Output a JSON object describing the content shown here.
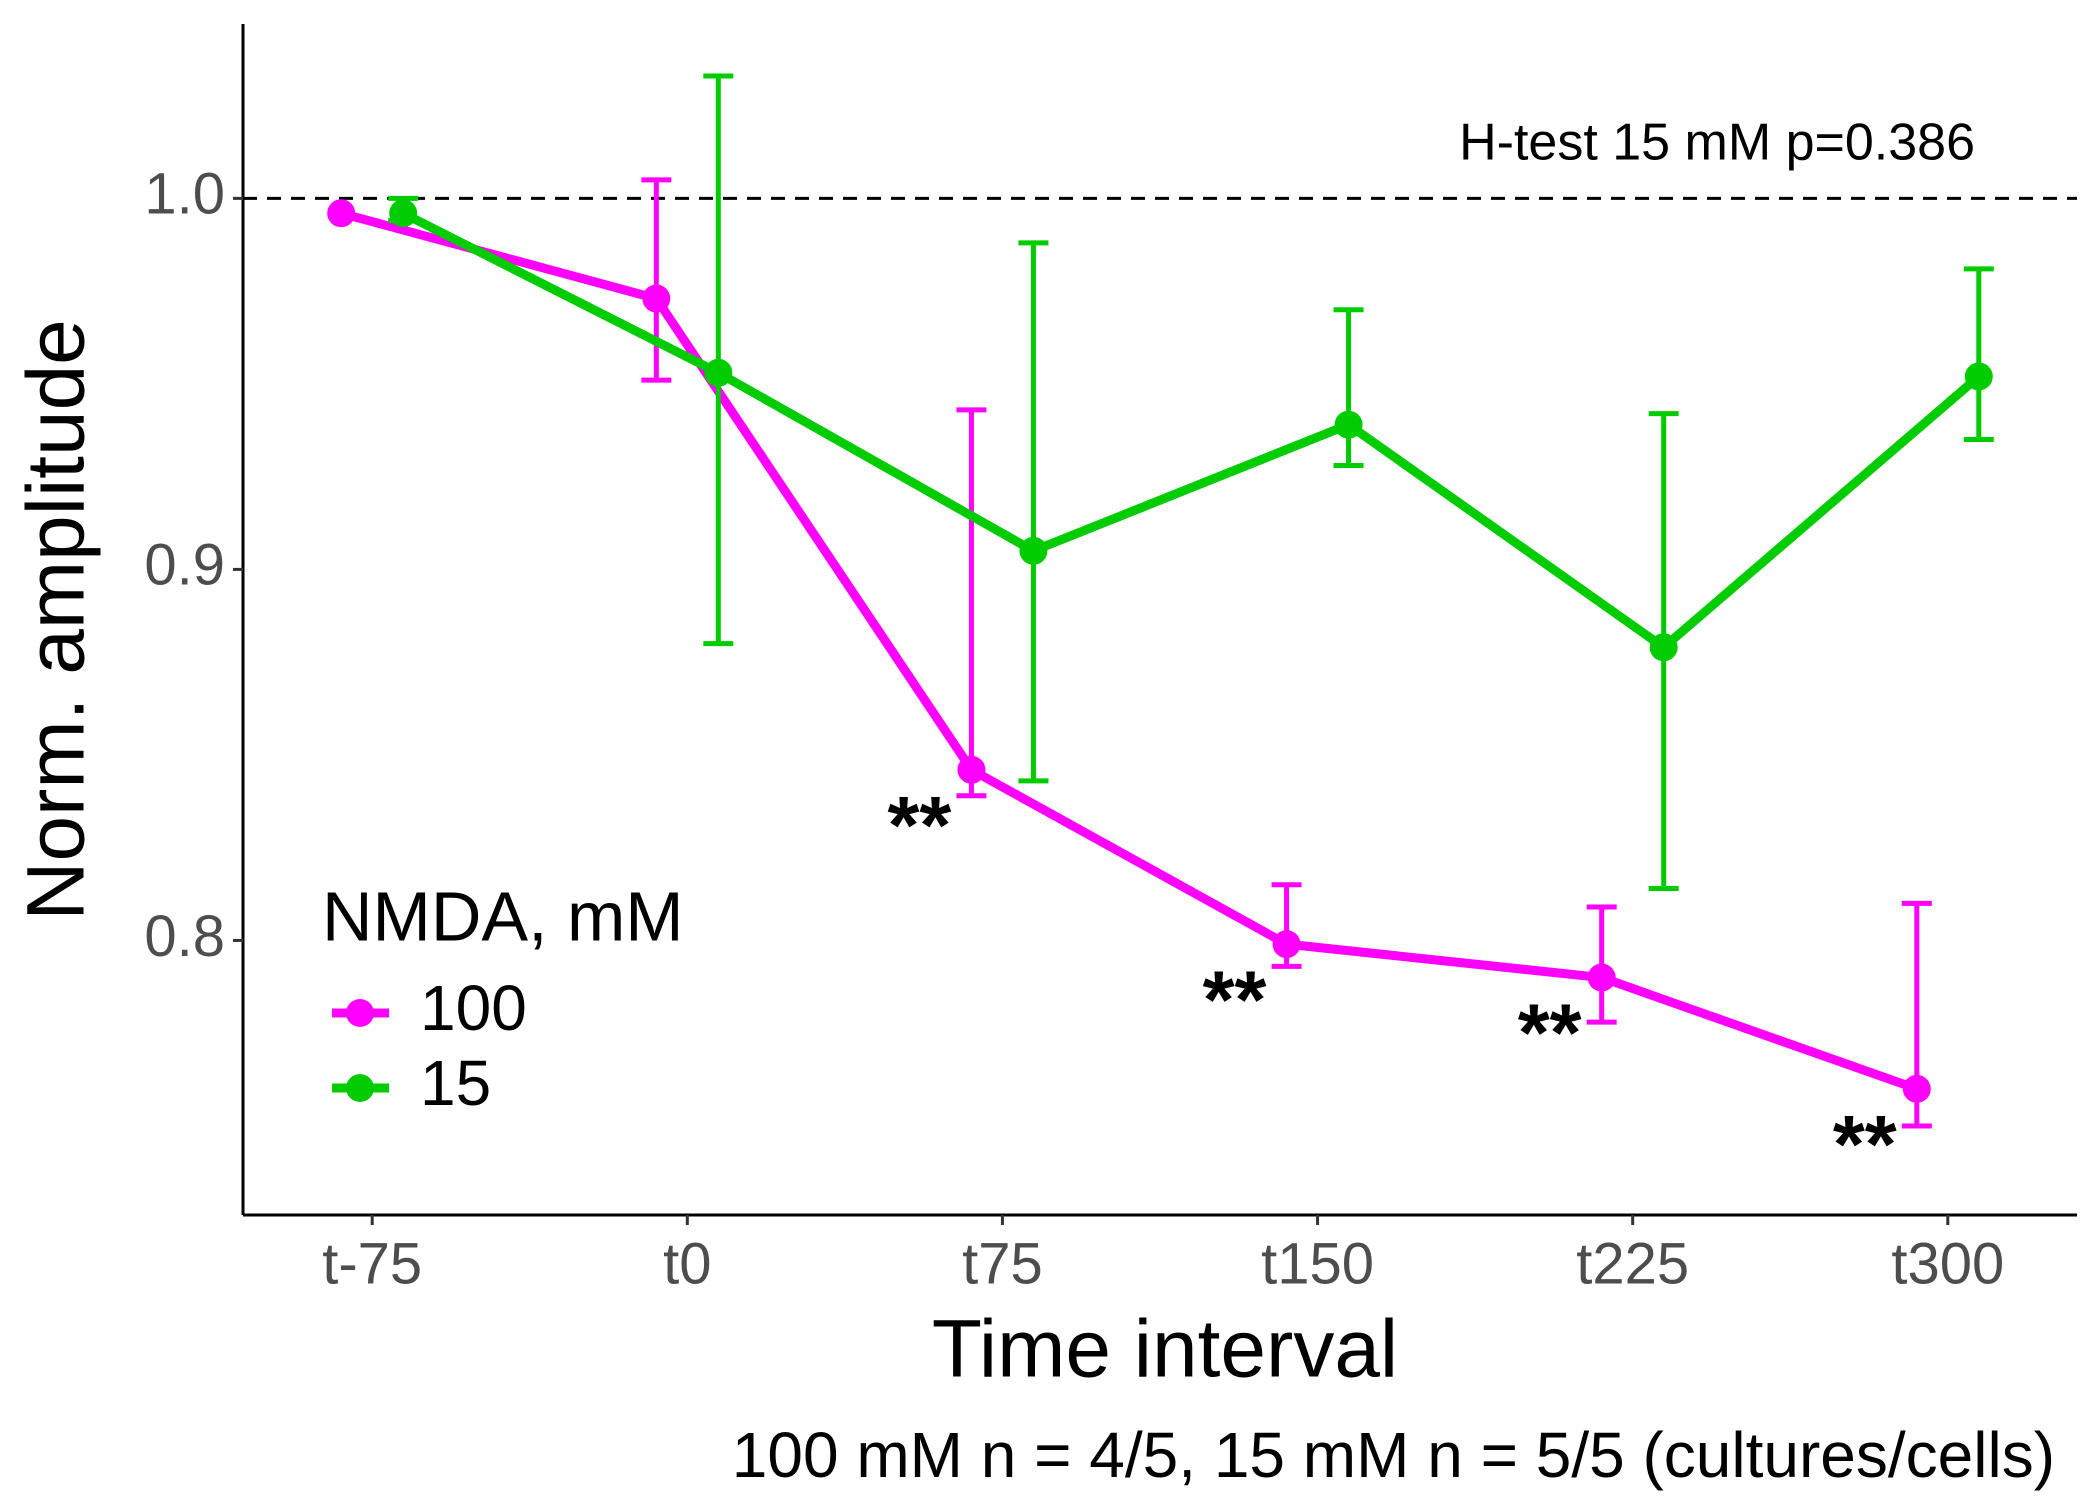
{
  "chart_data": {
    "type": "line",
    "x_label": "Time interval",
    "y_label": "Norm. amplitude",
    "caption": "100 mM n = 4/5, 15 mM n = 5/5 (cultures/cells)",
    "annotation": "H-test 15 mM p=0.386",
    "hline": 1,
    "categories": [
      "t-75",
      "t0",
      "t75",
      "t150",
      "t225",
      "t300"
    ],
    "ylim": [
      0.726,
      1.047
    ],
    "yticks": [
      0.8,
      0.9,
      {
        "value": 1,
        "label": "1.0"
      }
    ],
    "legend_title": "NMDA, mM",
    "legend_position": "bottom-left",
    "series": [
      {
        "name": "100",
        "color": "#ff00ff",
        "values": [
          0.996,
          0.973,
          0.846,
          0.799,
          0.79,
          0.76
        ],
        "lower": [
          null,
          0.951,
          0.839,
          0.793,
          0.778,
          0.75
        ],
        "upper": [
          null,
          1.005,
          0.943,
          0.815,
          0.809,
          0.81
        ],
        "markers": [
          null,
          null,
          "**",
          "**",
          "**",
          "**"
        ]
      },
      {
        "name": "15",
        "color": "#00cc00",
        "values": [
          0.996,
          0.953,
          0.905,
          0.939,
          0.879,
          0.952
        ],
        "lower": [
          0.994,
          0.88,
          0.843,
          0.928,
          0.814,
          0.935
        ],
        "upper": [
          1.0,
          1.033,
          0.988,
          0.97,
          0.942,
          0.981
        ]
      }
    ]
  }
}
